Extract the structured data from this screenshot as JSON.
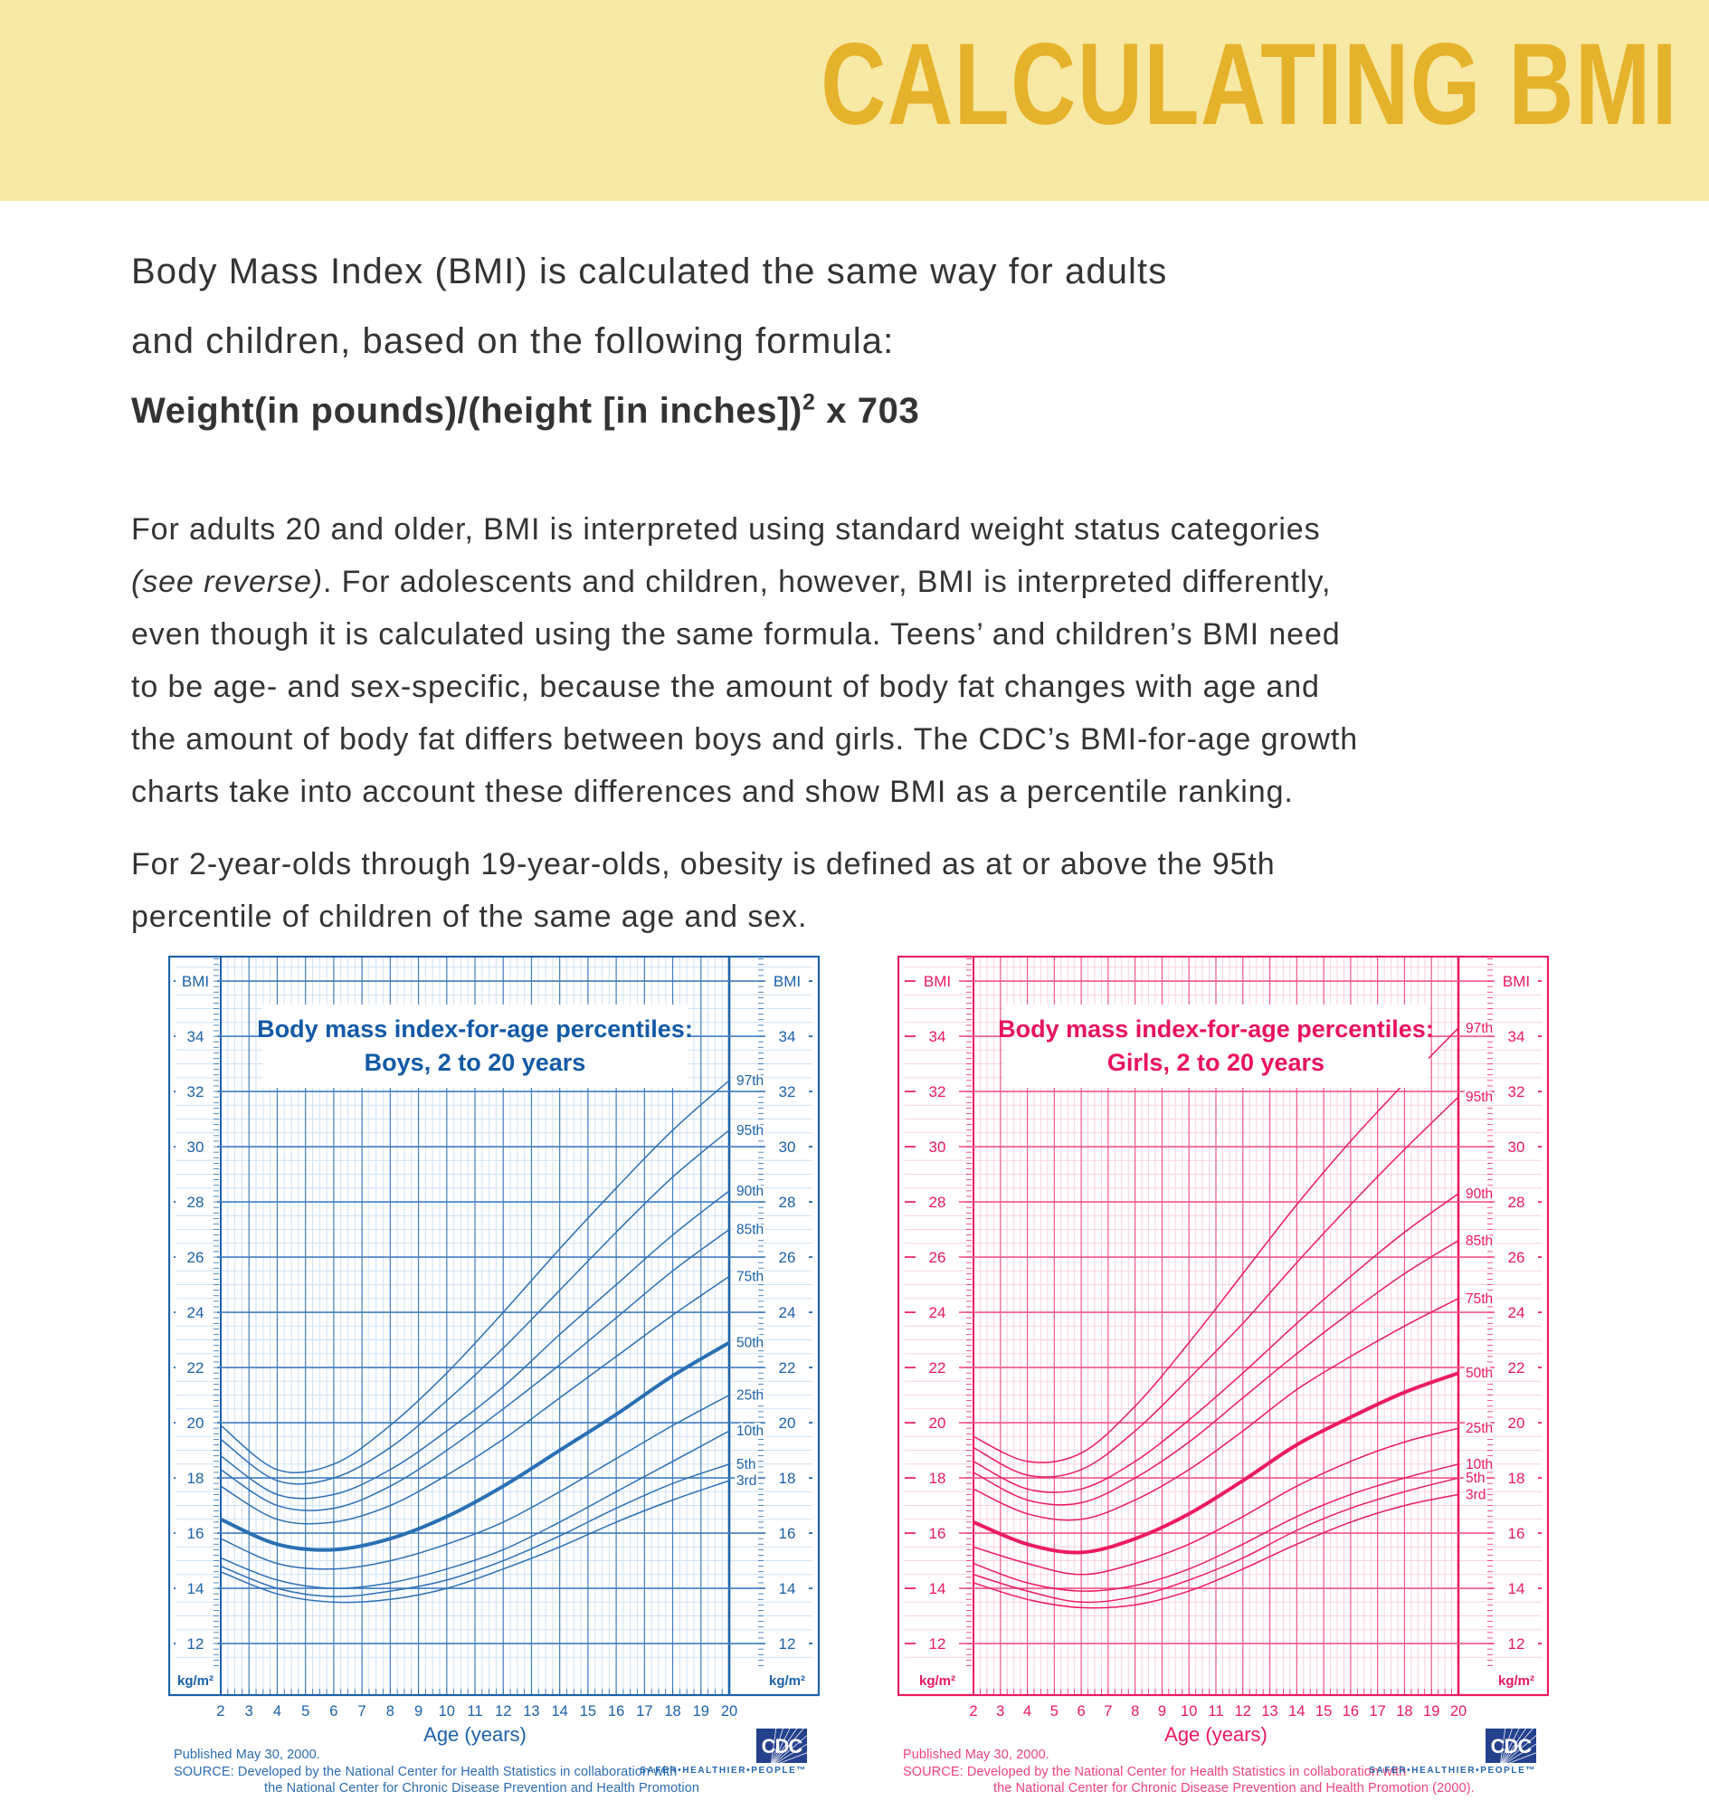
{
  "header": {
    "title": "CALCULATING BMI",
    "band_color": "#F7E8A3",
    "title_color": "#E5B22B"
  },
  "intro": {
    "line1": "Body Mass Index (BMI) is calculated the same way for adults",
    "line2": "and children, based on the following formula:",
    "formula_main": "Weight(in pounds)/(height [in inches])",
    "formula_sup": "2",
    "formula_tail": " x 703"
  },
  "paragraph2": {
    "line1": "For adults 20 and older, BMI is interpreted using standard weight status categories",
    "line2_italic": "(see reverse)",
    "line2_rest": ". For adolescents and children, however, BMI is interpreted differently,",
    "line3": "even though it is calculated using the same formula. Teens’ and children’s BMI need",
    "line4": "to be age- and sex-specific, because the amount of body fat changes with age and",
    "line5": "the amount of body fat differs between boys and girls. The CDC’s BMI-for-age growth",
    "line6": "charts take into account these differences and show BMI as a percentile ranking."
  },
  "paragraph3": {
    "line1": "For 2-year-olds through 19-year-olds, obesity is defined as at or above the 95th",
    "line2": "percentile of children of the same age and sex."
  },
  "cdc_logo": {
    "text": "CDC",
    "tagline": "SAFER•HEALTHIER•PEOPLE™",
    "box_color": "#24418E"
  },
  "chart_data": [
    {
      "type": "line",
      "id": "boys",
      "title": "Body mass index-for-age percentiles:",
      "subtitle": "Boys, 2 to 20 years",
      "xlabel": "Age (years)",
      "y_axis_label": "BMI",
      "unit_label": "kg/m²",
      "x": [
        2,
        4,
        6,
        8,
        10,
        12,
        14,
        16,
        18,
        20
      ],
      "xlim": [
        2,
        20
      ],
      "ylim": [
        11,
        37
      ],
      "grid": true,
      "y_ticks": [
        34,
        32,
        30,
        28,
        26,
        24,
        22,
        20,
        18,
        16,
        14,
        12
      ],
      "x_ticks": [
        2,
        3,
        4,
        5,
        6,
        7,
        8,
        9,
        10,
        11,
        12,
        13,
        14,
        15,
        16,
        17,
        18,
        19,
        20
      ],
      "bold_series": "50th",
      "series": [
        {
          "name": "97th",
          "values": [
            19.9,
            18.3,
            18.5,
            19.9,
            21.8,
            24.0,
            26.3,
            28.5,
            30.6,
            32.4
          ]
        },
        {
          "name": "95th",
          "values": [
            19.4,
            17.9,
            18.0,
            19.1,
            20.8,
            22.7,
            24.8,
            26.9,
            28.9,
            30.6
          ]
        },
        {
          "name": "90th",
          "values": [
            18.8,
            17.4,
            17.4,
            18.3,
            19.7,
            21.3,
            23.2,
            25.0,
            26.8,
            28.4
          ]
        },
        {
          "name": "85th",
          "values": [
            18.3,
            17.0,
            16.9,
            17.7,
            19.0,
            20.5,
            22.1,
            23.8,
            25.5,
            27.0
          ]
        },
        {
          "name": "75th",
          "values": [
            17.7,
            16.5,
            16.4,
            17.0,
            18.1,
            19.4,
            20.9,
            22.4,
            23.9,
            25.3
          ]
        },
        {
          "name": "50th",
          "values": [
            16.5,
            15.6,
            15.4,
            15.8,
            16.6,
            17.7,
            19.0,
            20.3,
            21.7,
            22.9
          ]
        },
        {
          "name": "25th",
          "values": [
            15.8,
            14.9,
            14.7,
            15.0,
            15.6,
            16.4,
            17.5,
            18.7,
            19.9,
            21.0
          ]
        },
        {
          "name": "10th",
          "values": [
            15.1,
            14.3,
            14.0,
            14.2,
            14.7,
            15.4,
            16.4,
            17.5,
            18.6,
            19.7
          ]
        },
        {
          "name": "5th",
          "values": [
            14.8,
            14.0,
            13.7,
            13.9,
            14.3,
            15.0,
            15.9,
            16.9,
            17.8,
            18.5
          ]
        },
        {
          "name": "3rd",
          "values": [
            14.6,
            13.8,
            13.5,
            13.6,
            14.0,
            14.7,
            15.5,
            16.4,
            17.2,
            17.9
          ]
        }
      ],
      "colors": {
        "main": "#1A61A9",
        "curve": "#2A6FB4",
        "grid_minor": "#CFE2F3",
        "grid_major": "#3F7DBE",
        "title": "#1259A6",
        "caption": "#2B6CB0"
      },
      "published": "Published May 30, 2000.",
      "source_line1": "SOURCE: Developed by the National Center for Health Statistics in collaboration with",
      "source_line2": "the National Center for Chronic Disease Prevention and Health Promotion",
      "geom": {
        "x0": 58,
        "x1": 620
      }
    },
    {
      "type": "line",
      "id": "girls",
      "title": "Body mass index-for-age percentiles:",
      "subtitle": "Girls, 2 to 20 years",
      "xlabel": "Age (years)",
      "y_axis_label": "BMI",
      "unit_label": "kg/m²",
      "x": [
        2,
        4,
        6,
        8,
        10,
        12,
        14,
        16,
        18,
        20
      ],
      "xlim": [
        2,
        20
      ],
      "ylim": [
        11,
        37
      ],
      "grid": true,
      "y_ticks": [
        34,
        32,
        30,
        28,
        26,
        24,
        22,
        20,
        18,
        16,
        14,
        12
      ],
      "x_ticks": [
        2,
        3,
        4,
        5,
        6,
        7,
        8,
        9,
        10,
        11,
        12,
        13,
        14,
        15,
        16,
        17,
        18,
        19,
        20
      ],
      "bold_series": "50th",
      "series": [
        {
          "name": "97th",
          "values": [
            19.5,
            18.6,
            18.9,
            20.6,
            22.9,
            25.4,
            27.9,
            30.2,
            32.3,
            34.3
          ]
        },
        {
          "name": "95th",
          "values": [
            19.1,
            18.1,
            18.3,
            19.7,
            21.6,
            23.6,
            25.8,
            27.9,
            29.9,
            31.8
          ]
        },
        {
          "name": "90th",
          "values": [
            18.6,
            17.6,
            17.6,
            18.6,
            20.1,
            21.8,
            23.6,
            25.3,
            26.9,
            28.3
          ]
        },
        {
          "name": "85th",
          "values": [
            18.2,
            17.2,
            17.1,
            18.0,
            19.3,
            20.9,
            22.5,
            24.0,
            25.4,
            26.6
          ]
        },
        {
          "name": "75th",
          "values": [
            17.6,
            16.7,
            16.5,
            17.2,
            18.3,
            19.7,
            21.2,
            22.4,
            23.5,
            24.5
          ]
        },
        {
          "name": "50th",
          "values": [
            16.4,
            15.6,
            15.3,
            15.8,
            16.7,
            17.9,
            19.2,
            20.2,
            21.1,
            21.8
          ]
        },
        {
          "name": "25th",
          "values": [
            15.5,
            14.9,
            14.5,
            14.9,
            15.6,
            16.6,
            17.7,
            18.6,
            19.3,
            19.8
          ]
        },
        {
          "name": "10th",
          "values": [
            14.9,
            14.2,
            13.9,
            14.1,
            14.7,
            15.6,
            16.6,
            17.4,
            18.0,
            18.5
          ]
        },
        {
          "name": "5th",
          "values": [
            14.5,
            13.9,
            13.5,
            13.7,
            14.3,
            15.1,
            16.1,
            16.9,
            17.5,
            18.0
          ]
        },
        {
          "name": "3rd",
          "values": [
            14.2,
            13.6,
            13.3,
            13.4,
            13.9,
            14.7,
            15.6,
            16.4,
            17.0,
            17.4
          ]
        }
      ],
      "colors": {
        "main": "#EB185F",
        "curve": "#EC1A62",
        "grid_minor": "#FAD2DF",
        "grid_major": "#F0558B",
        "title": "#E8115F",
        "caption": "#F0437B"
      },
      "published": "Published May 30, 2000.",
      "source_line1": "SOURCE: Developed by the National Center for Health Statistics in collaboration with",
      "source_line2": "the National Center for Chronic Disease Prevention and Health Promotion (2000).",
      "geom": {
        "x0": 84,
        "x1": 620
      }
    }
  ]
}
